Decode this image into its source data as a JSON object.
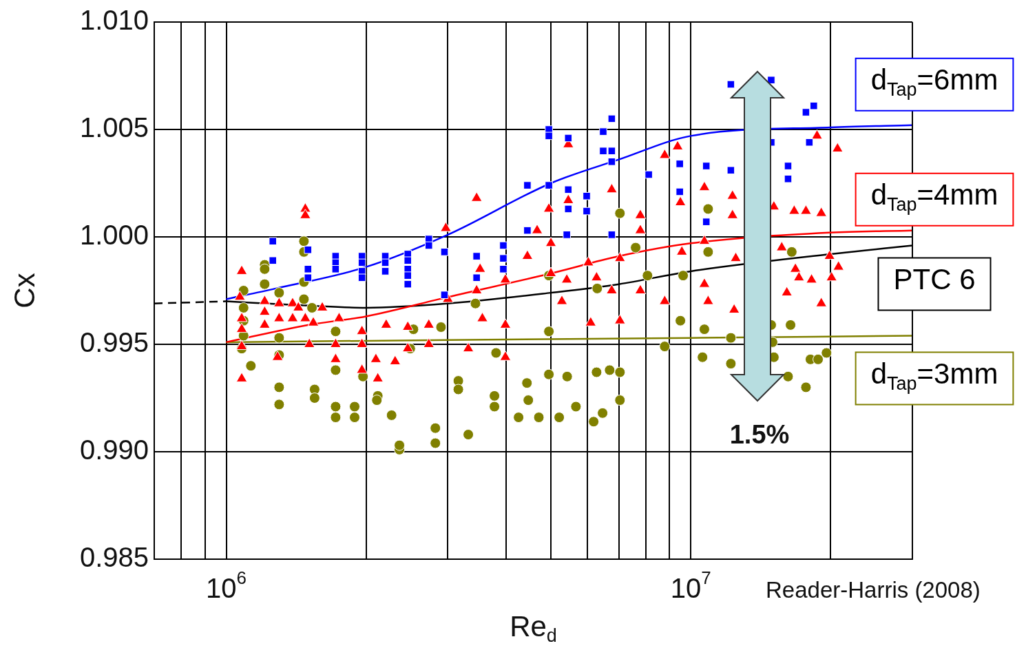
{
  "chart_data": {
    "type": "scatter",
    "xlabel": "Re$_{d}$",
    "ylabel": "Cx",
    "annotations": [
      "1.5%",
      "Reader-Harris (2008)"
    ],
    "log": "x",
    "grid": true,
    "xlim": [
      700000.0,
      30000000.0
    ],
    "xticks": [
      {
        "value": 700000.0,
        "label": null
      },
      {
        "value": 800000.0,
        "label": null
      },
      {
        "value": 900000.0,
        "label": null
      },
      {
        "value": 1000000.0,
        "label": "10$^{6}$"
      },
      {
        "value": 2000000.0,
        "label": null
      },
      {
        "value": 3000000.0,
        "label": null
      },
      {
        "value": 4000000.0,
        "label": null
      },
      {
        "value": 5000000.0,
        "label": null
      },
      {
        "value": 6000000.0,
        "label": null
      },
      {
        "value": 7000000.0,
        "label": null
      },
      {
        "value": 8000000.0,
        "label": null
      },
      {
        "value": 9000000.0,
        "label": null
      },
      {
        "value": 10000000.0,
        "label": "10$^{7}$"
      },
      {
        "value": 20000000.0,
        "label": null
      }
    ],
    "ylim": [
      0.985,
      1.01
    ],
    "yticks": [
      0.985,
      {
        "value": 0.99,
        "label": "0.990"
      },
      0.995,
      {
        "value": 1,
        "label": "1.000"
      },
      1.005,
      {
        "value": 1.01,
        "label": "1.010"
      }
    ],
    "series": [
      {
        "type": "scatter",
        "marker": "square",
        "color": "#0000ff",
        "x": [
          1260000.0,
          1260000.0,
          1500000.0,
          1500000.0,
          1500000.0,
          1720000.0,
          1720000.0,
          1720000.0,
          1960000.0,
          1960000.0,
          1960000.0,
          1960000.0,
          2200000.0,
          2200000.0,
          2200000.0,
          2460000.0,
          2460000.0,
          2460000.0,
          2460000.0,
          2460000.0,
          2730000.0,
          2730000.0,
          2950000.0,
          2950000.0,
          3460000.0,
          3460000.0,
          3950000.0,
          3950000.0,
          3950000.0,
          4450000.0,
          4450000.0,
          4950000.0,
          4950000.0,
          4950000.0,
          5450000.0,
          5450000.0,
          5450000.0,
          5410000.0,
          5970000.0,
          5970000.0,
          6480000.0,
          6480000.0,
          6760000.0,
          6760000.0,
          6760000.0,
          6760000.0,
          8120000.0,
          9470000.0,
          9470000.0,
          10800000.0,
          10800000.0,
          12200000.0,
          12200000.0,
          13700000.0,
          14900000.0,
          14900000.0,
          16200000.0,
          16200000.0,
          17700000.0,
          18400000.0,
          18000000.0
        ],
        "values": [
          0.9998,
          0.9989,
          0.9994,
          0.9985,
          0.9981,
          0.9991,
          0.9988,
          0.9985,
          0.9991,
          0.9988,
          0.9984,
          0.9981,
          0.9991,
          0.9988,
          0.9984,
          0.9992,
          0.9989,
          0.9985,
          0.9982,
          0.9978,
          0.9999,
          0.9996,
          0.9993,
          0.9973,
          0.9991,
          0.9981,
          0.9996,
          0.999,
          0.9985,
          1.0024,
          1.0003,
          1.005,
          1.0047,
          1.0024,
          1.0046,
          1.0022,
          1.0013,
          1.0001,
          1.0019,
          1.0012,
          1.0049,
          1.004,
          1.0055,
          1.004,
          1.0035,
          1.0001,
          1.0029,
          1.0034,
          1.0021,
          1.0033,
          1.0007,
          1.0071,
          1.0031,
          null,
          1.0073,
          1.0044,
          1.0033,
          1.0027,
          1.0058,
          1.0061,
          1.0044
        ]
      },
      {
        "type": "scatter",
        "marker": "triangle",
        "color": "#ff0000",
        "x": [
          1080000.0,
          1080000.0,
          1070000.0,
          1080000.0,
          1080000.0,
          1080000.0,
          1480000.0,
          1480000.0,
          1210000.0,
          1210000.0,
          1210000.0,
          1300000.0,
          1300000.0,
          1290000.0,
          1390000.0,
          1390000.0,
          1430000.0,
          1510000.0,
          1480000.0,
          1540000.0,
          1610000.0,
          1750000.0,
          1720000.0,
          1720000.0,
          1960000.0,
          1960000.0,
          1960000.0,
          2100000.0,
          2120000.0,
          2210000.0,
          2310000.0,
          2460000.0,
          2460000.0,
          2730000.0,
          2730000.0,
          2970000.0,
          3000000.0,
          3320000.0,
          3460000.0,
          3460000.0,
          3560000.0,
          3520000.0,
          3990000.0,
          3990000.0,
          3990000.0,
          4450000.0,
          4670000.0,
          4950000.0,
          5000000.0,
          5000000.0,
          5280000.0,
          5450000.0,
          5450000.0,
          5410000.0,
          6020000.0,
          6090000.0,
          6270000.0,
          6760000.0,
          6760000.0,
          7040000.0,
          7040000.0,
          7790000.0,
          7790000.0,
          7790000.0,
          8790000.0,
          8790000.0,
          9370000.0,
          9500000.0,
          9570000.0,
          10700000.0,
          10700000.0,
          10700000.0,
          10900000.0,
          12300000.0,
          12300000.0,
          12500000.0,
          12400000.0,
          13800000.0,
          15100000.0,
          15700000.0,
          16100000.0,
          16700000.0,
          16800000.0,
          17100000.0,
          17700000.0,
          18200000.0,
          18700000.0,
          19100000.0,
          19100000.0,
          19900000.0,
          20100000.0,
          20700000.0,
          20800000.0
        ],
        "values": [
          0.9984,
          0.9934,
          0.9972,
          0.9962,
          0.9957,
          0.9949,
          1.0013,
          1.001,
          0.997,
          0.9965,
          0.9959,
          0.9969,
          0.9962,
          0.9944,
          0.9969,
          0.9962,
          0.9967,
          0.995,
          0.9962,
          0.996,
          0.9967,
          0.9962,
          0.995,
          0.9943,
          0.9956,
          0.995,
          0.9938,
          0.9943,
          0.9934,
          0.9959,
          0.9942,
          0.9948,
          0.9958,
          0.995,
          0.9959,
          1.0004,
          0.9971,
          0.9948,
          1.0018,
          0.9975,
          0.9962,
          0.9985,
          0.998,
          0.9959,
          0.9944,
          0.9991,
          1.0003,
          1.0013,
          0.9997,
          0.9983,
          0.997,
          1.0043,
          1.0017,
          0.998,
          0.9988,
          0.996,
          0.9981,
          1.0022,
          0.9975,
          0.999,
          0.9961,
          1.001,
          1.0003,
          0.9975,
          1.0038,
          0.997,
          1.0042,
          1.0016,
          0.9993,
          1.0023,
          0.9998,
          0.9978,
          0.997,
          1.0019,
          1.001,
          0.999,
          0.9966,
          null,
          1.0014,
          0.9995,
          0.9974,
          1.0012,
          0.9985,
          0.9981,
          1.0012,
          0.998,
          1.0047,
          0.9969,
          1.0011,
          0.9991,
          0.9981,
          1.0041,
          0.9986
        ]
      },
      {
        "type": "scatter",
        "marker": "circle",
        "color": "#808000",
        "x": [
          1090000.0,
          1090000.0,
          1090000.0,
          1090000.0,
          1080000.0,
          1130000.0,
          1210000.0,
          1210000.0,
          1210000.0,
          1300000.0,
          1300000.0,
          1300000.0,
          1300000.0,
          1300000.0,
          1470000.0,
          1470000.0,
          1470000.0,
          1470000.0,
          1550000.0,
          1550000.0,
          1530000.0,
          1720000.0,
          1720000.0,
          1720000.0,
          1720000.0,
          1890000.0,
          1890000.0,
          1970000.0,
          2120000.0,
          2110000.0,
          2270000.0,
          2360000.0,
          2360000.0,
          2490000.0,
          2530000.0,
          2820000.0,
          2820000.0,
          2900000.0,
          3160000.0,
          3160000.0,
          3320000.0,
          3440000.0,
          3780000.0,
          3780000.0,
          3810000.0,
          4260000.0,
          4440000.0,
          4470000.0,
          4710000.0,
          4950000.0,
          4950000.0,
          4950000.0,
          5210000.0,
          5420000.0,
          5660000.0,
          6180000.0,
          6460000.0,
          6270000.0,
          6290000.0,
          6690000.0,
          7040000.0,
          7040000.0,
          7040000.0,
          7610000.0,
          8070000.0,
          8790000.0,
          9500000.0,
          9630000.0,
          10600000.0,
          10700000.0,
          10900000.0,
          10900000.0,
          12200000.0,
          12200000.0,
          13700000.0,
          14900000.0,
          15000000.0,
          15100000.0,
          16200000.0,
          16400000.0,
          16500000.0,
          17700000.0,
          18100000.0,
          19600000.0,
          18800000.0
        ],
        "values": [
          0.9975,
          0.9967,
          0.9961,
          0.9954,
          0.9948,
          0.994,
          0.9987,
          0.9985,
          0.9978,
          0.9974,
          0.9953,
          0.9945,
          0.993,
          0.9922,
          0.9998,
          0.9993,
          0.9979,
          0.9971,
          0.9929,
          0.9925,
          0.9967,
          0.9956,
          0.9938,
          0.9921,
          0.9916,
          0.9921,
          0.9916,
          0.9935,
          0.9926,
          0.9924,
          0.9917,
          0.9901,
          0.9903,
          0.9948,
          0.9957,
          0.9911,
          0.9904,
          0.9958,
          0.9933,
          0.9929,
          0.9908,
          0.9969,
          0.9926,
          0.9921,
          0.9946,
          0.9916,
          0.9932,
          0.9924,
          0.9916,
          0.9982,
          0.9956,
          0.9936,
          0.9916,
          0.9935,
          0.9921,
          0.9914,
          0.9918,
          0.9937,
          0.9976,
          0.9938,
          1.0011,
          0.9924,
          0.9937,
          0.9995,
          0.9982,
          0.9949,
          0.9961,
          0.9982,
          0.9944,
          0.9957,
          1.0013,
          0.9993,
          0.9941,
          0.9953,
          null,
          0.9959,
          0.9951,
          0.9944,
          0.9935,
          0.9959,
          0.9993,
          0.993,
          0.9943,
          0.9946,
          0.9943
        ]
      },
      {
        "type": "line",
        "name": "d$_{Tap}$=6mm",
        "marker": "none",
        "color": "#0000ff",
        "x": [
          1000000.0,
          1280000.0,
          2000000.0,
          3000000.0,
          5000000.0,
          7000000.0,
          10000000.0,
          20000000.0,
          30000000.0
        ],
        "values": [
          0.9971,
          0.9976,
          0.9986,
          1.0001,
          1.0025,
          1.0036,
          1.0047,
          1.0051,
          1.0052
        ]
      },
      {
        "type": "line",
        "name": "d$_{Tap}$=4mm",
        "marker": "none",
        "color": "#ff0000",
        "x": [
          1000000.0,
          1500000.0,
          2000000.0,
          3000000.0,
          5000000.0,
          7000000.0,
          10000000.0,
          20000000.0,
          30000000.0
        ],
        "values": [
          0.9951,
          0.9959,
          0.9963,
          0.9972,
          0.9983,
          0.9991,
          0.9997,
          1.0002,
          1.0003
        ]
      },
      {
        "type": "line",
        "name": "PTC 6",
        "marker": "none",
        "color": "#000000",
        "x": [
          1000000.0,
          1500000.0,
          2000000.0,
          3000000.0,
          5000000.0,
          7000000.0,
          10000000.0,
          20000000.0,
          30000000.0
        ],
        "values": [
          0.997,
          0.9968,
          0.9967,
          0.9969,
          0.9974,
          0.9978,
          0.9984,
          0.9992,
          0.9996
        ]
      },
      {
        "type": "line",
        "marker": "none",
        "line_style": "dashed",
        "color": "#000000",
        "x": [
          700000.0,
          1000000.0
        ],
        "values": [
          0.9969,
          0.997
        ]
      },
      {
        "type": "line",
        "name": "d$_{Tap}$=3mm",
        "marker": "none",
        "color": "#808000",
        "x": [
          1000000.0,
          3000000.0,
          10000000.0,
          30000000.0
        ],
        "values": [
          0.9951,
          0.9952,
          0.9953,
          0.9954
        ]
      }
    ]
  }
}
